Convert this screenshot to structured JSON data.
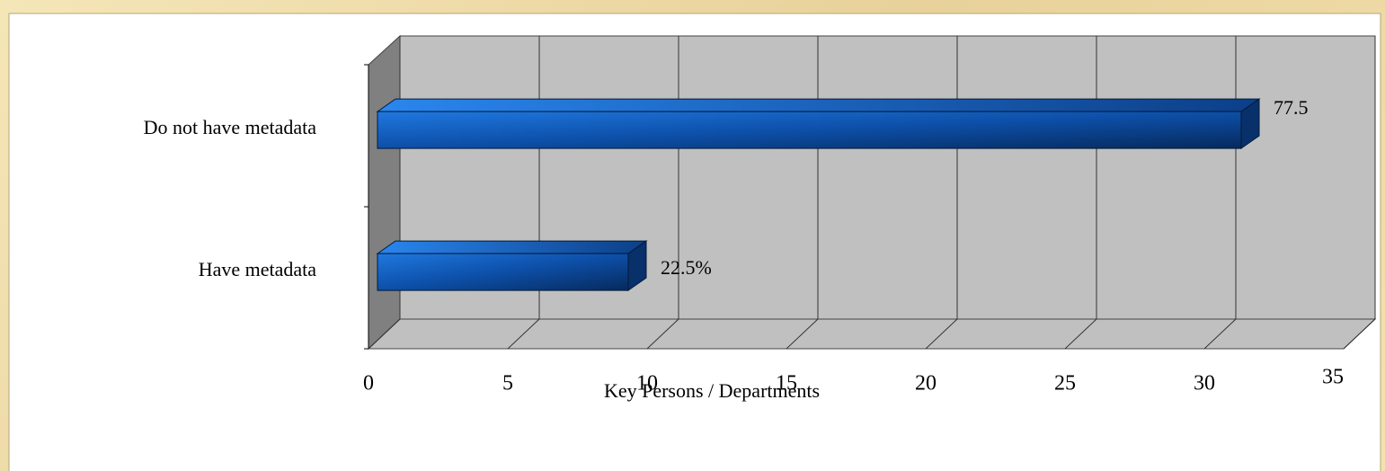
{
  "chart_data": {
    "type": "bar",
    "orientation": "horizontal",
    "three_d": true,
    "categories": [
      "Do not have metadata",
      "Have metadata"
    ],
    "values": [
      31,
      9
    ],
    "annotations": [
      "77.5",
      "22.5%"
    ],
    "color": "#1560c0",
    "xlabel": "Key Persons / Departments",
    "xlim": [
      0,
      35
    ],
    "xticks": [
      0,
      5,
      10,
      15,
      20,
      25,
      30,
      35
    ],
    "grid": true
  }
}
